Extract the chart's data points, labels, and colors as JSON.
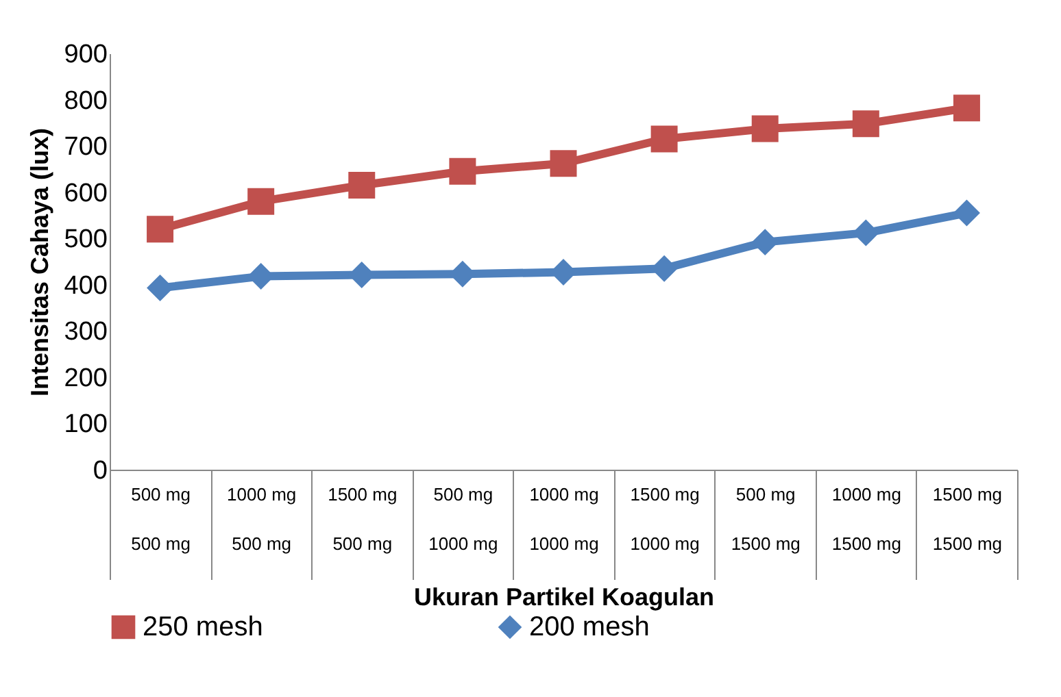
{
  "chart_data": {
    "type": "line",
    "xlabel": "Ukuran  Partikel Koagulan",
    "ylabel": "Intensitas Cahaya (lux)",
    "categories": [
      "500 mg\n500 mg",
      "1000 mg\n500 mg",
      "1500 mg\n500 mg",
      "500 mg\n1000 mg",
      "1000 mg\n1000 mg",
      "1500 mg\n1000 mg",
      "500 mg\n1500 mg",
      "1000 mg\n1500 mg",
      "1500 mg\n1500 mg"
    ],
    "series": [
      {
        "name": "250 mesh",
        "color": "#c0504d",
        "marker": "square",
        "values": [
          520,
          580,
          615,
          645,
          662,
          715,
          737,
          748,
          782
        ]
      },
      {
        "name": "200 mesh",
        "color": "#4f81bd",
        "marker": "diamond",
        "values": [
          393,
          418,
          421,
          423,
          427,
          435,
          492,
          512,
          555
        ]
      }
    ],
    "ylim": [
      0,
      900
    ],
    "yticks": [
      0,
      100,
      200,
      300,
      400,
      500,
      600,
      700,
      800,
      900
    ],
    "grid": false,
    "legend": "bottom",
    "line_style": "solid"
  }
}
